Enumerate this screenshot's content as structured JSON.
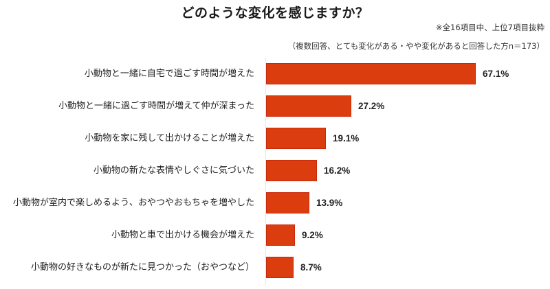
{
  "chart_data": {
    "type": "bar",
    "orientation": "horizontal",
    "title": "どのような変化を感じますか？",
    "subtitle": "※全16項目中、上位7項目抜粋",
    "note": "（複数回答、とても変化がある・やや変化があると回答した方n＝173）",
    "xlabel": "",
    "ylabel": "",
    "categories": [
      "小動物と一緒に自宅で過ごす時間が増えた",
      "小動物と一緒に過ごす時間が増えて仲が深まった",
      "小動物を家に残して出かけることが増えた",
      "小動物の新たな表情やしぐさに気づいた",
      "小動物が室内で楽しめるよう、おやつやおもちゃを増やした",
      "小動物と車で出かける機会が増えた",
      "小動物の好きなものが新たに見つかった（おやつなど）"
    ],
    "values": [
      67.1,
      27.2,
      19.1,
      16.2,
      13.9,
      9.2,
      8.7
    ],
    "value_labels": [
      "67.1%",
      "27.2%",
      "19.1%",
      "16.2%",
      "13.9%",
      "9.2%",
      "8.7%"
    ],
    "unit": "%",
    "grid": false,
    "legend": "none",
    "bar_color": "#dc3d0f"
  },
  "rows": [
    {
      "label": "小動物と一緒に自宅で過ごす時間が増えた",
      "value": "67.1%"
    },
    {
      "label": "小動物と一緒に過ごす時間が増えて仲が深まった",
      "value": "27.2%"
    },
    {
      "label": "小動物を家に残して出かけることが増えた",
      "value": "19.1%"
    },
    {
      "label": "小動物の新たな表情やしぐさに気づいた",
      "value": "16.2%"
    },
    {
      "label": "小動物が室内で楽しめるよう、おやつやおもちゃを増やした",
      "value": "13.9%"
    },
    {
      "label": "小動物と車で出かける機会が増えた",
      "value": "9.2%"
    },
    {
      "label": "小動物の好きなものが新たに見つかった（おやつなど）",
      "value": "8.7%"
    }
  ]
}
